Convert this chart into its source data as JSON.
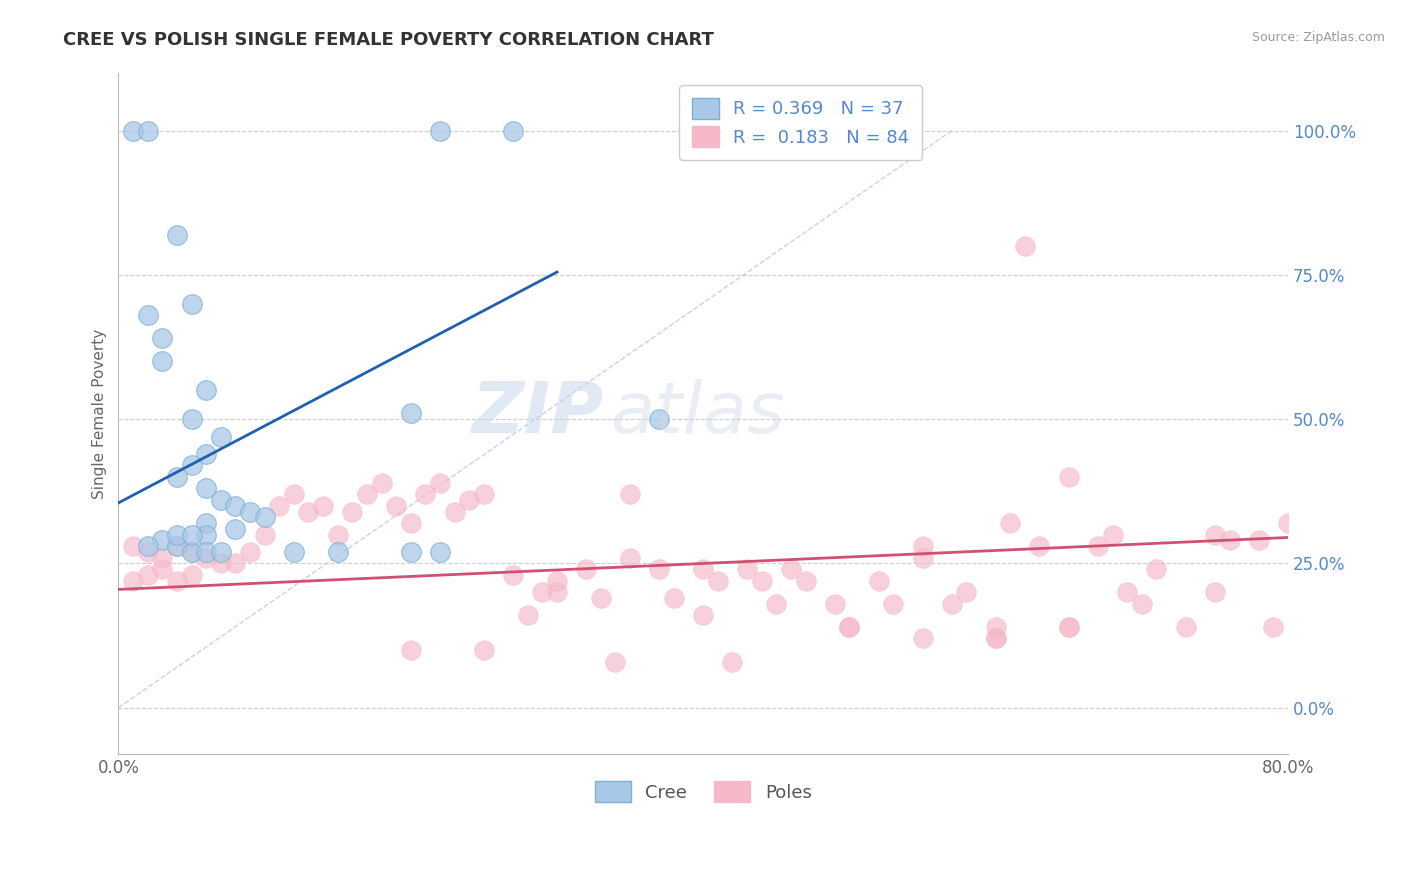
{
  "title": "CREE VS POLISH SINGLE FEMALE POVERTY CORRELATION CHART",
  "source": "Source: ZipAtlas.com",
  "ylabel": "Single Female Poverty",
  "xlim": [
    0.0,
    0.8
  ],
  "ylim": [
    -0.08,
    1.1
  ],
  "ytick_labels": [
    "0.0%",
    "25.0%",
    "50.0%",
    "75.0%",
    "100.0%"
  ],
  "ytick_values": [
    0.0,
    0.25,
    0.5,
    0.75,
    1.0
  ],
  "xtick_labels": [
    "0.0%",
    "80.0%"
  ],
  "xtick_values": [
    0.0,
    0.8
  ],
  "legend_cree_r": "R = 0.369",
  "legend_cree_n": "N = 37",
  "legend_poles_r": "R =  0.183",
  "legend_poles_n": "N = 84",
  "cree_color": "#a8c8e8",
  "cree_edge_color": "#7aafd0",
  "poles_color": "#f5b8c8",
  "poles_edge_color": "#f5b8c8",
  "cree_line_color": "#2060b0",
  "poles_line_color": "#d05070",
  "diag_line_color": "#b8c8e0",
  "watermark_zip": "ZIP",
  "watermark_atlas": "atlas",
  "background_color": "#ffffff",
  "grid_color": "#cccccc",
  "ytick_color": "#5588cc",
  "xtick_color": "#666666",
  "title_color": "#333333",
  "ylabel_color": "#666666",
  "source_color": "#999999",
  "cree_scatter_x": [
    0.01,
    0.02,
    0.22,
    0.27,
    0.04,
    0.05,
    0.03,
    0.06,
    0.05,
    0.07,
    0.06,
    0.05,
    0.04,
    0.06,
    0.07,
    0.08,
    0.09,
    0.1,
    0.06,
    0.08,
    0.06,
    0.03,
    0.02,
    0.04,
    0.05,
    0.06,
    0.07,
    0.37,
    0.12,
    0.2,
    0.22,
    0.15,
    0.02,
    0.03,
    0.04,
    0.05,
    0.2
  ],
  "cree_scatter_y": [
    1.0,
    1.0,
    1.0,
    1.0,
    0.82,
    0.7,
    0.6,
    0.55,
    0.5,
    0.47,
    0.44,
    0.42,
    0.4,
    0.38,
    0.36,
    0.35,
    0.34,
    0.33,
    0.32,
    0.31,
    0.3,
    0.29,
    0.28,
    0.28,
    0.27,
    0.27,
    0.27,
    0.5,
    0.27,
    0.27,
    0.27,
    0.27,
    0.68,
    0.64,
    0.3,
    0.3,
    0.51
  ],
  "poles_scatter_x": [
    0.01,
    0.02,
    0.03,
    0.04,
    0.05,
    0.06,
    0.07,
    0.08,
    0.09,
    0.1,
    0.11,
    0.12,
    0.13,
    0.14,
    0.15,
    0.16,
    0.17,
    0.18,
    0.19,
    0.2,
    0.21,
    0.22,
    0.23,
    0.24,
    0.25,
    0.01,
    0.02,
    0.03,
    0.04,
    0.05,
    0.27,
    0.29,
    0.3,
    0.32,
    0.33,
    0.35,
    0.37,
    0.38,
    0.4,
    0.41,
    0.43,
    0.44,
    0.46,
    0.47,
    0.49,
    0.5,
    0.52,
    0.53,
    0.55,
    0.57,
    0.58,
    0.6,
    0.61,
    0.63,
    0.65,
    0.67,
    0.69,
    0.71,
    0.73,
    0.75,
    0.78,
    0.3,
    0.35,
    0.4,
    0.45,
    0.5,
    0.55,
    0.6,
    0.65,
    0.7,
    0.62,
    0.68,
    0.75,
    0.76,
    0.79,
    0.6,
    0.65,
    0.8,
    0.55,
    0.25,
    0.2,
    0.28,
    0.34,
    0.42
  ],
  "poles_scatter_y": [
    0.28,
    0.27,
    0.26,
    0.28,
    0.27,
    0.26,
    0.25,
    0.25,
    0.27,
    0.3,
    0.35,
    0.37,
    0.34,
    0.35,
    0.3,
    0.34,
    0.37,
    0.39,
    0.35,
    0.32,
    0.37,
    0.39,
    0.34,
    0.36,
    0.37,
    0.22,
    0.23,
    0.24,
    0.22,
    0.23,
    0.23,
    0.2,
    0.2,
    0.24,
    0.19,
    0.37,
    0.24,
    0.19,
    0.24,
    0.22,
    0.24,
    0.22,
    0.24,
    0.22,
    0.18,
    0.14,
    0.22,
    0.18,
    0.28,
    0.18,
    0.2,
    0.14,
    0.32,
    0.28,
    0.4,
    0.28,
    0.2,
    0.24,
    0.14,
    0.3,
    0.29,
    0.22,
    0.26,
    0.16,
    0.18,
    0.14,
    0.12,
    0.12,
    0.14,
    0.18,
    0.8,
    0.3,
    0.2,
    0.29,
    0.14,
    0.12,
    0.14,
    0.32,
    0.26,
    0.1,
    0.1,
    0.16,
    0.08,
    0.08
  ],
  "cree_trendline_x": [
    0.0,
    0.3
  ],
  "cree_trendline_y": [
    0.355,
    0.755
  ],
  "poles_trendline_x": [
    0.0,
    0.8
  ],
  "poles_trendline_y": [
    0.205,
    0.295
  ],
  "diag_line_x": [
    0.0,
    0.57
  ],
  "diag_line_y": [
    0.0,
    1.0
  ]
}
